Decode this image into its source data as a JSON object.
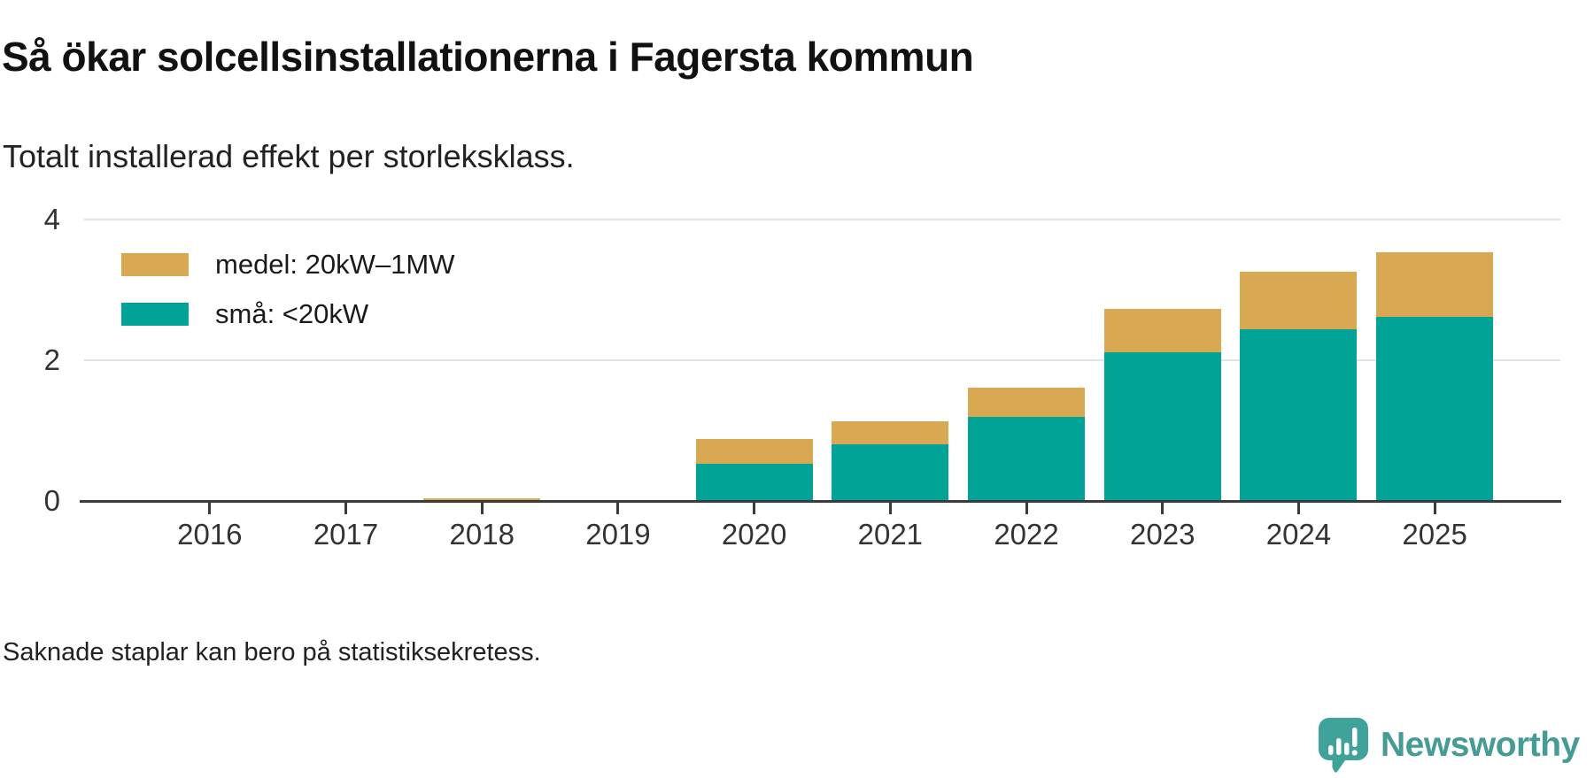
{
  "header": {
    "title": "Så ökar solcellsinstallationerna i Fagersta kommun",
    "subtitle": "Totalt installerad effekt per storleksklass."
  },
  "chart_data": {
    "type": "bar",
    "stacked": true,
    "title": "Så ökar solcellsinstallationerna i Fagersta kommun",
    "subtitle": "Totalt installerad effekt per storleksklass.",
    "categories": [
      "2016",
      "2017",
      "2018",
      "2019",
      "2020",
      "2021",
      "2022",
      "2023",
      "2024",
      "2025"
    ],
    "series": [
      {
        "name": "små: <20kW",
        "color": "#00a396",
        "values": [
          0,
          0,
          0,
          0,
          0.53,
          0.8,
          1.2,
          2.11,
          2.44,
          2.62
        ]
      },
      {
        "name": "medel: 20kW–1MW",
        "color": "#d9a852",
        "values": [
          0,
          0,
          0.04,
          0,
          0.35,
          0.33,
          0.42,
          0.62,
          0.82,
          0.92
        ]
      }
    ],
    "legend_items": [
      {
        "label": "medel: 20kW–1MW",
        "color": "#d9a852"
      },
      {
        "label": "små: <20kW",
        "color": "#00a396"
      }
    ],
    "legend_position": "top-left-inside",
    "y_ticks": [
      0,
      2,
      4
    ],
    "ylim": [
      0,
      4.4
    ],
    "xlabel": "",
    "ylabel": "",
    "grid": "horizontal"
  },
  "footer": {
    "note": "Saknade staplar kan bero på statistiksekretess.",
    "brand": "Newsworthy"
  },
  "colors": {
    "bar_small": "#00a396",
    "bar_medium": "#d9a852",
    "axis": "#3b3b3b",
    "gridline": "#e3e3e3",
    "logo_teal": "#3fa39b",
    "brand_text": "#459c94"
  }
}
